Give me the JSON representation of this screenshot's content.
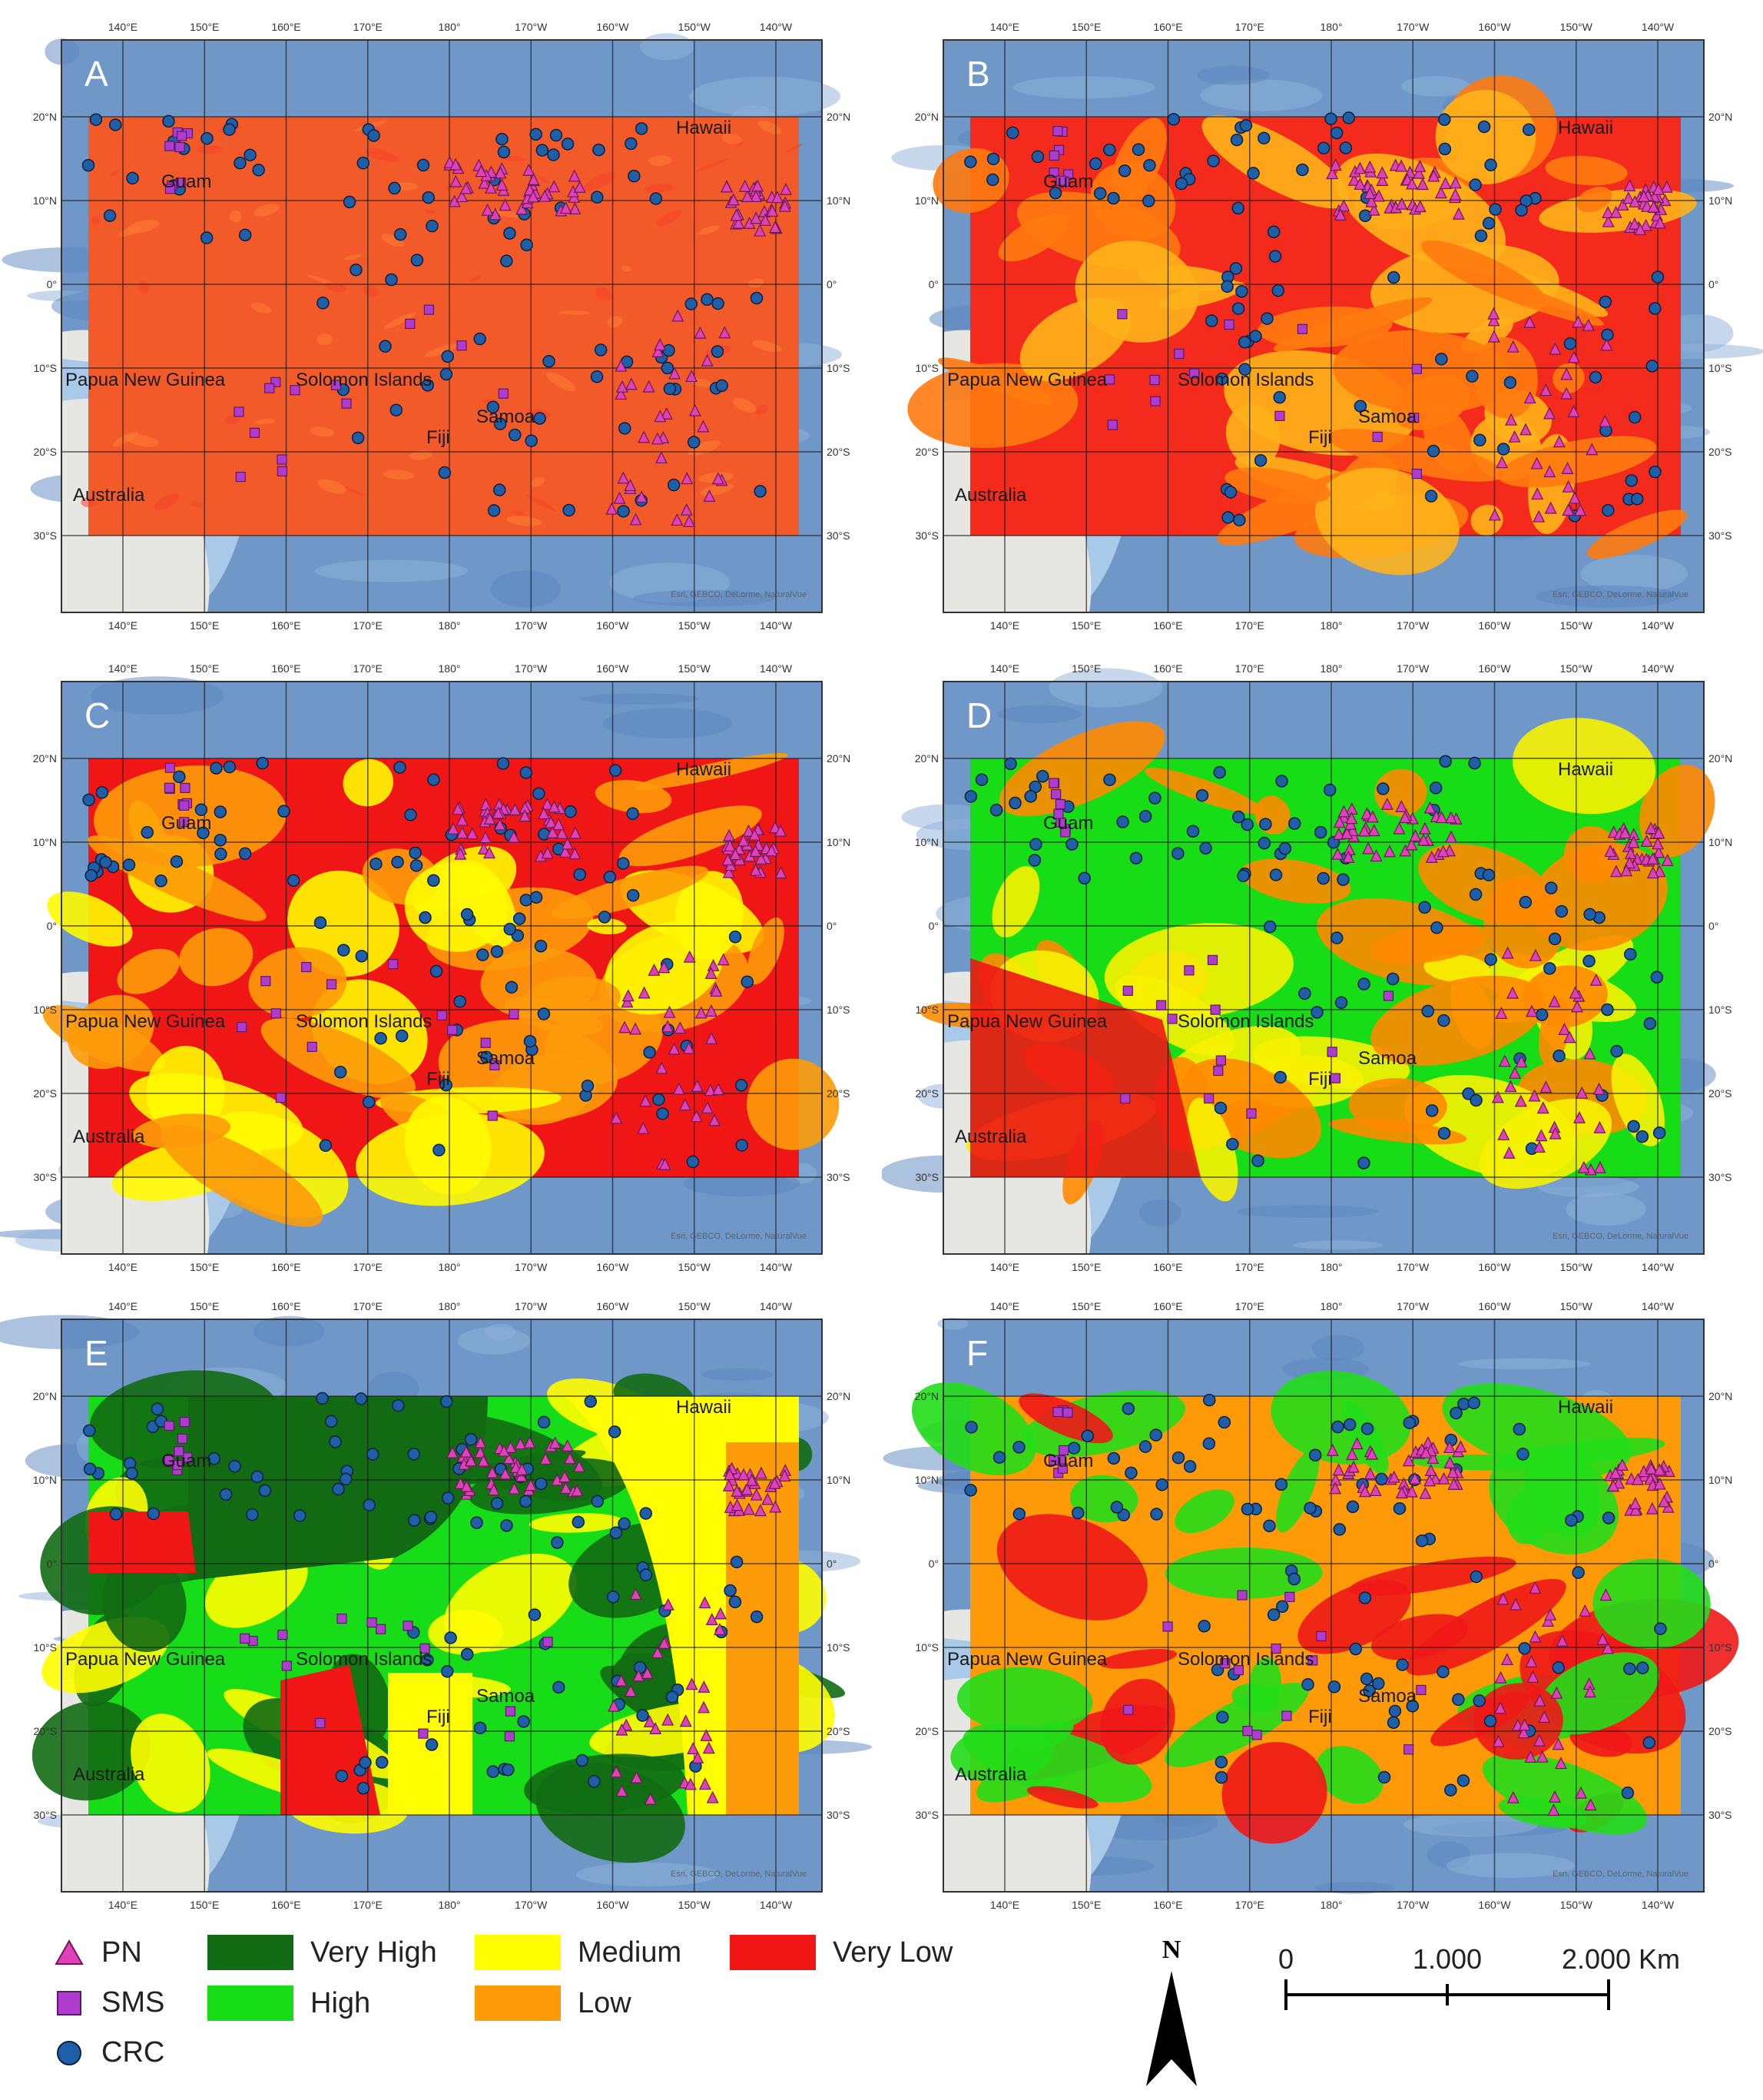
{
  "panels": [
    {
      "letter": "A",
      "colors": {
        "base": "#f25a2a",
        "mottle": "#ff7d33",
        "secondary": "#f7412a"
      }
    },
    {
      "letter": "B",
      "colors": {
        "base": "#f32a1c",
        "mottle": "#ffb21a",
        "secondary": "#ff7a10"
      }
    },
    {
      "letter": "C",
      "colors": {
        "base": "#f01616",
        "mottle": "#fd9b09",
        "secondary": "#fffa00"
      }
    },
    {
      "letter": "D",
      "colors": {
        "base": "#17dd17",
        "mottle": "#f7f200",
        "secondary": "#ff8a00"
      }
    },
    {
      "letter": "E",
      "colors": {
        "base": "#16dd17",
        "mottle": "#fffd00",
        "secondary": "#126b13"
      }
    },
    {
      "letter": "F",
      "colors": {
        "base": "#fe9a08",
        "mottle": "#f01818",
        "secondary": "#22dd18"
      }
    }
  ],
  "top_lon_labels": [
    "140°E",
    "150°E",
    "160°E",
    "170°E",
    "180°",
    "170°W",
    "160°W",
    "150°W",
    "140°W"
  ],
  "lat_labels": [
    "20°N",
    "10°N",
    "0°",
    "10°S",
    "20°S",
    "30°S"
  ],
  "place_labels": {
    "papua": "Papua New Guinea",
    "solomon": "Solomon Islands",
    "samoa": "Samoa",
    "fiji": "Fiji",
    "australia": "Australia",
    "guam": "Guam",
    "hawaii": "Hawaii"
  },
  "attribution": "Esri, GEBCO, DeLorme, NaturalVue",
  "legend": {
    "symbols": [
      {
        "label": "PN",
        "shape": "triangle",
        "color": "#e040b8"
      },
      {
        "label": "SMS",
        "shape": "square",
        "color": "#b03ccf"
      },
      {
        "label": "CRC",
        "shape": "circle",
        "color": "#1f5fa8"
      }
    ],
    "classes": [
      {
        "label": "Very High",
        "color": "#126b13"
      },
      {
        "label": "High",
        "color": "#17dd17"
      },
      {
        "label": "Medium",
        "color": "#fffd00"
      },
      {
        "label": "Low",
        "color": "#fd9b09"
      },
      {
        "label": "Very Low",
        "color": "#f01616"
      }
    ]
  },
  "north_arrow": "N",
  "scale_bar": {
    "ticks": [
      "0",
      "1.000",
      "2.000 Km"
    ]
  }
}
